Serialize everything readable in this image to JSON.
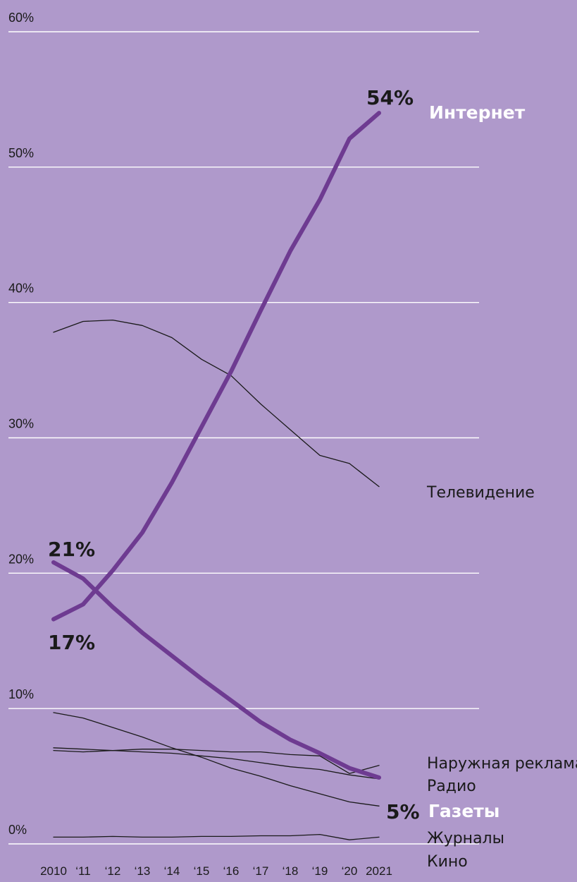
{
  "chart_data": {
    "type": "line",
    "title": "",
    "xlabel": "",
    "ylabel": "",
    "x": [
      2010,
      2011,
      2012,
      2013,
      2014,
      2015,
      2016,
      2017,
      2018,
      2019,
      2020,
      2021
    ],
    "x_tick_labels": [
      "2010",
      "‘11",
      "‘12",
      "‘13",
      "‘14",
      "‘15",
      "‘16",
      "‘17",
      "‘18",
      "‘19",
      "‘20",
      "2021"
    ],
    "ylim": [
      0,
      60
    ],
    "y_ticks": [
      0,
      10,
      20,
      30,
      40,
      50,
      60
    ],
    "y_tick_labels": [
      "0%",
      "10%",
      "20%",
      "30%",
      "40%",
      "50%",
      "60%"
    ],
    "grid": true,
    "series": [
      {
        "name": "Интернет",
        "highlight": true,
        "color": "#6e3b91",
        "values": [
          16.6,
          17.7,
          20.2,
          23.0,
          26.7,
          30.8,
          34.9,
          39.4,
          43.8,
          47.6,
          52.1,
          54.0
        ]
      },
      {
        "name": "Телевидение",
        "highlight": false,
        "color": "#1a1a1a",
        "values": [
          37.8,
          38.6,
          38.7,
          38.3,
          37.4,
          35.8,
          34.6,
          32.5,
          30.6,
          28.7,
          28.1,
          26.4
        ]
      },
      {
        "name": "Газеты",
        "highlight": true,
        "color": "#6e3b91",
        "values": [
          20.8,
          19.6,
          17.5,
          15.6,
          13.9,
          12.2,
          10.6,
          9.0,
          7.7,
          6.7,
          5.6,
          4.9
        ]
      },
      {
        "name": "Наружная реклама",
        "highlight": false,
        "color": "#1a1a1a",
        "values": [
          7.1,
          7.0,
          6.9,
          7.0,
          7.0,
          6.9,
          6.8,
          6.8,
          6.6,
          6.5,
          5.2,
          5.8
        ]
      },
      {
        "name": "Радио",
        "highlight": false,
        "color": "#1a1a1a",
        "values": [
          6.9,
          6.8,
          6.9,
          6.8,
          6.7,
          6.5,
          6.3,
          6.0,
          5.7,
          5.5,
          5.1,
          4.8
        ]
      },
      {
        "name": "Журналы",
        "highlight": false,
        "color": "#1a1a1a",
        "values": [
          9.7,
          9.3,
          8.6,
          7.9,
          7.1,
          6.4,
          5.6,
          5.0,
          4.3,
          3.7,
          3.1,
          2.8
        ]
      },
      {
        "name": "Кино",
        "highlight": false,
        "color": "#1a1a1a",
        "values": [
          0.5,
          0.5,
          0.55,
          0.5,
          0.5,
          0.55,
          0.55,
          0.6,
          0.6,
          0.7,
          0.3,
          0.5
        ]
      }
    ],
    "annotations": [
      {
        "text": "54%",
        "series": "Интернет",
        "x": 2021,
        "y": 54
      },
      {
        "text": "21%",
        "series": "Газеты",
        "x": 2010,
        "y": 21
      },
      {
        "text": "17%",
        "series": "Интернет",
        "x": 2010,
        "y": 17
      },
      {
        "text": "5%",
        "series": "Газеты",
        "x": 2021,
        "y": 5
      }
    ]
  },
  "colors": {
    "background": "#af99cb",
    "highlight": "#6e3b91",
    "line": "#1a1a1a",
    "grid": "#ffffff",
    "highlight_label": "#ffffff"
  }
}
